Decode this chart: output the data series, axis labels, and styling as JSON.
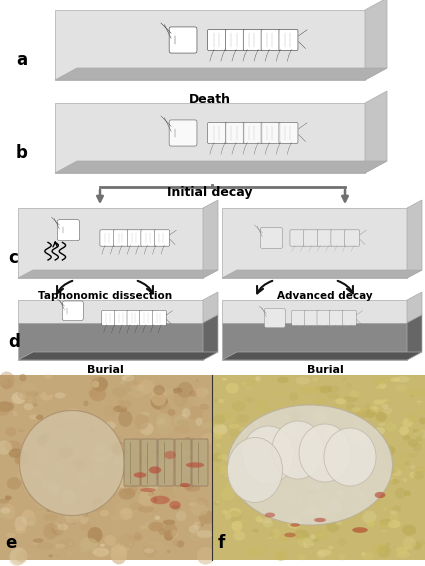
{
  "bg_color": "#ffffff",
  "labels": {
    "a": "a",
    "b": "b",
    "c": "c",
    "d": "d",
    "e": "e",
    "f": "f"
  },
  "captions": {
    "death": "Death",
    "initial_decay": "Initial decay",
    "taph_dissection": "Taphonomic dissection",
    "advanced_decay": "Advanced decay",
    "burial_left": "Burial",
    "burial_right": "Burial"
  },
  "platform_top": "#e2e2e2",
  "platform_right": "#c5c5c5",
  "platform_bottom": "#b0b0b0",
  "platform_edge": "#aaaaaa",
  "burial_top": "#d5d5d5",
  "burial_dark": "#888888",
  "burial_dark_side": "#666666",
  "arrow_gray": "#707070",
  "arrow_black": "#111111",
  "photo_e_bg": "#c4a87a",
  "photo_f_bg": "#c8b870"
}
